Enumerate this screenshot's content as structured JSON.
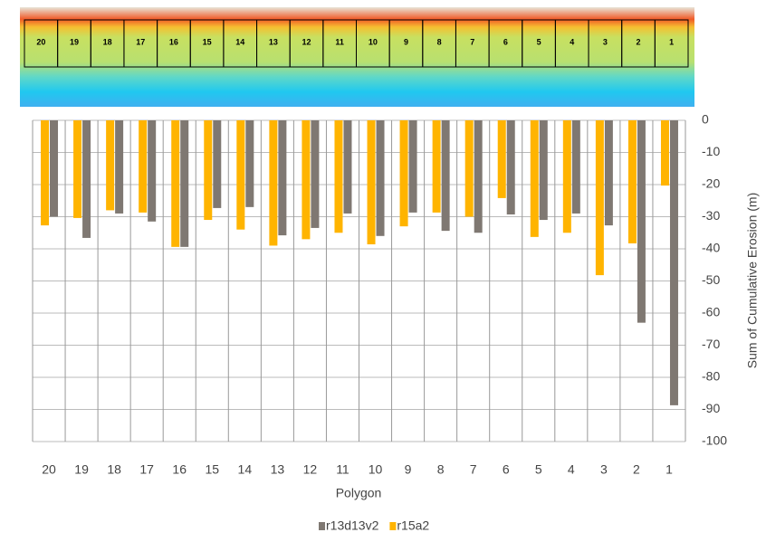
{
  "chart_data": {
    "type": "bar",
    "y_label": "Sum of Cumulative Erosion (m)",
    "x_label": "Polygon",
    "categories": [
      "20",
      "19",
      "18",
      "17",
      "16",
      "15",
      "14",
      "13",
      "12",
      "11",
      "10",
      "9",
      "8",
      "7",
      "6",
      "5",
      "4",
      "3",
      "2",
      "1"
    ],
    "series": [
      {
        "name": "r13d13v2",
        "color": "#7f7872",
        "values": [
          -30,
          -36.6,
          -29,
          -31.5,
          -39.4,
          -27.3,
          -27,
          -35.8,
          -33.5,
          -29,
          -36,
          -28.7,
          -34.4,
          -35,
          -29.3,
          -31,
          -29,
          -32.7,
          -63,
          -88.7
        ]
      },
      {
        "name": "r15a2",
        "color": "#ffb400",
        "values": [
          -32.7,
          -30.4,
          -28,
          -28.7,
          -39.4,
          -31,
          -34,
          -39,
          -37,
          -35,
          -38.6,
          -33,
          -28.7,
          -30,
          -24.2,
          -36.3,
          -35,
          -48.2,
          -38.3,
          -20.3
        ]
      }
    ],
    "ylim": [
      -100,
      0
    ],
    "yticks": [
      0,
      -10,
      -20,
      -30,
      -40,
      -50,
      -60,
      -70,
      -80,
      -90,
      -100
    ],
    "grid": true
  }
}
